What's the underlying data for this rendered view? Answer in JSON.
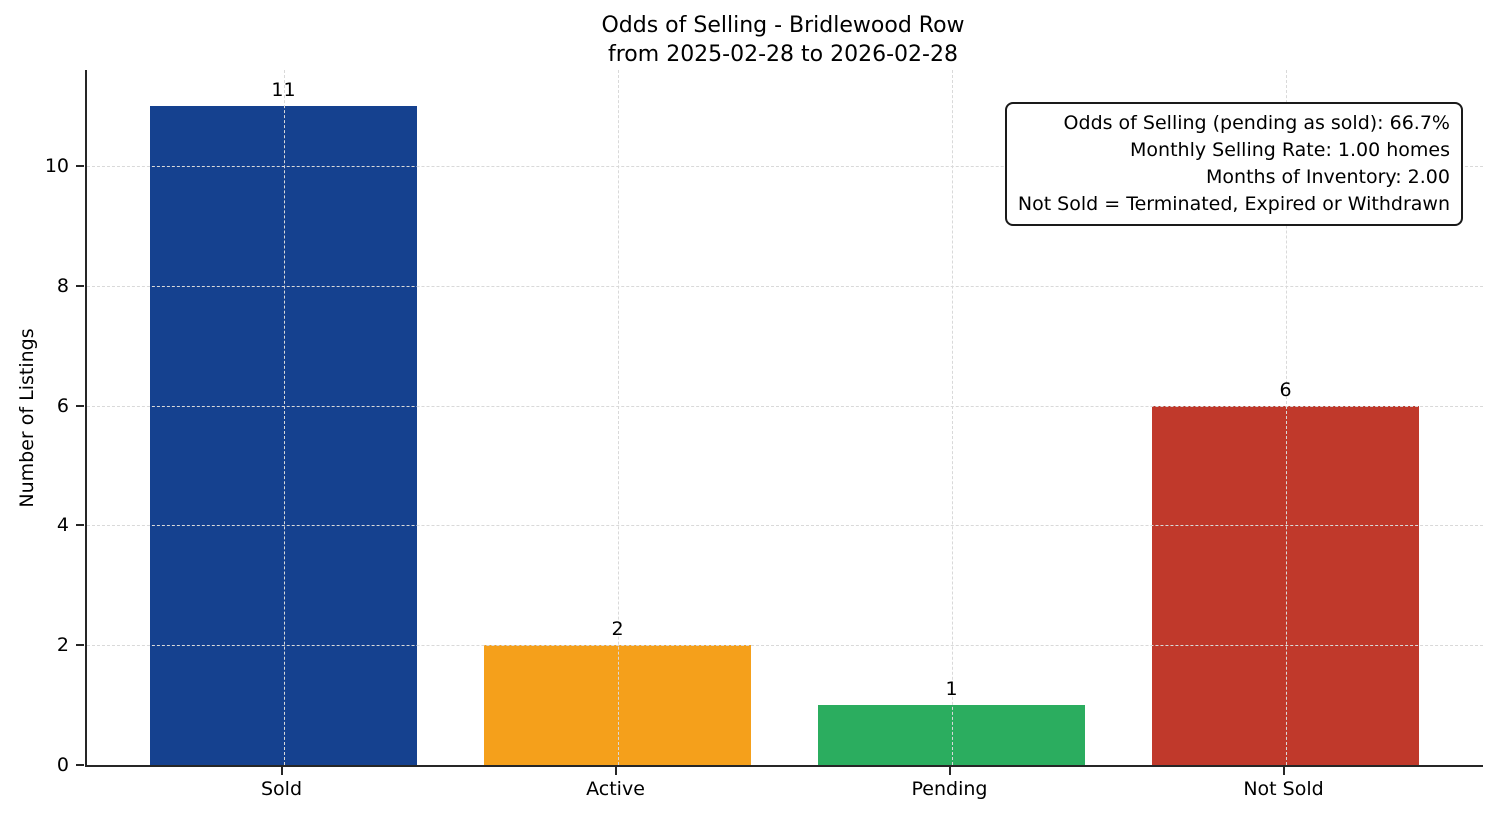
{
  "chart_data": {
    "type": "bar",
    "title": "Odds of Selling - Bridlewood Row",
    "subtitle": "from 2025-02-28 to 2026-02-28",
    "xlabel": "",
    "ylabel": "Number of Listings",
    "categories": [
      "Sold",
      "Active",
      "Pending",
      "Not Sold"
    ],
    "values": [
      11,
      2,
      1,
      6
    ],
    "bar_labels": [
      "11",
      "2",
      "1",
      "6"
    ],
    "bar_colors": [
      "#15418f",
      "#f5a01b",
      "#2bad5f",
      "#c0392b"
    ],
    "yticks": [
      0,
      2,
      4,
      6,
      8,
      10
    ],
    "ylim": [
      0,
      11.6
    ],
    "grid": "dashed light-gray, horizontal and vertical, drawn above bars",
    "legend_position": "none",
    "annotation_box": {
      "position": "top-right",
      "lines": [
        "Odds of Selling (pending as sold): 66.7%",
        "Monthly Selling Rate: 1.00 homes",
        "Months of Inventory: 2.00",
        "Not Sold = Terminated, Expired or Withdrawn"
      ]
    },
    "colors": {
      "background": "#ffffff",
      "spine": "#262626",
      "grid": "#d9d9d9",
      "text": "#000000"
    }
  }
}
